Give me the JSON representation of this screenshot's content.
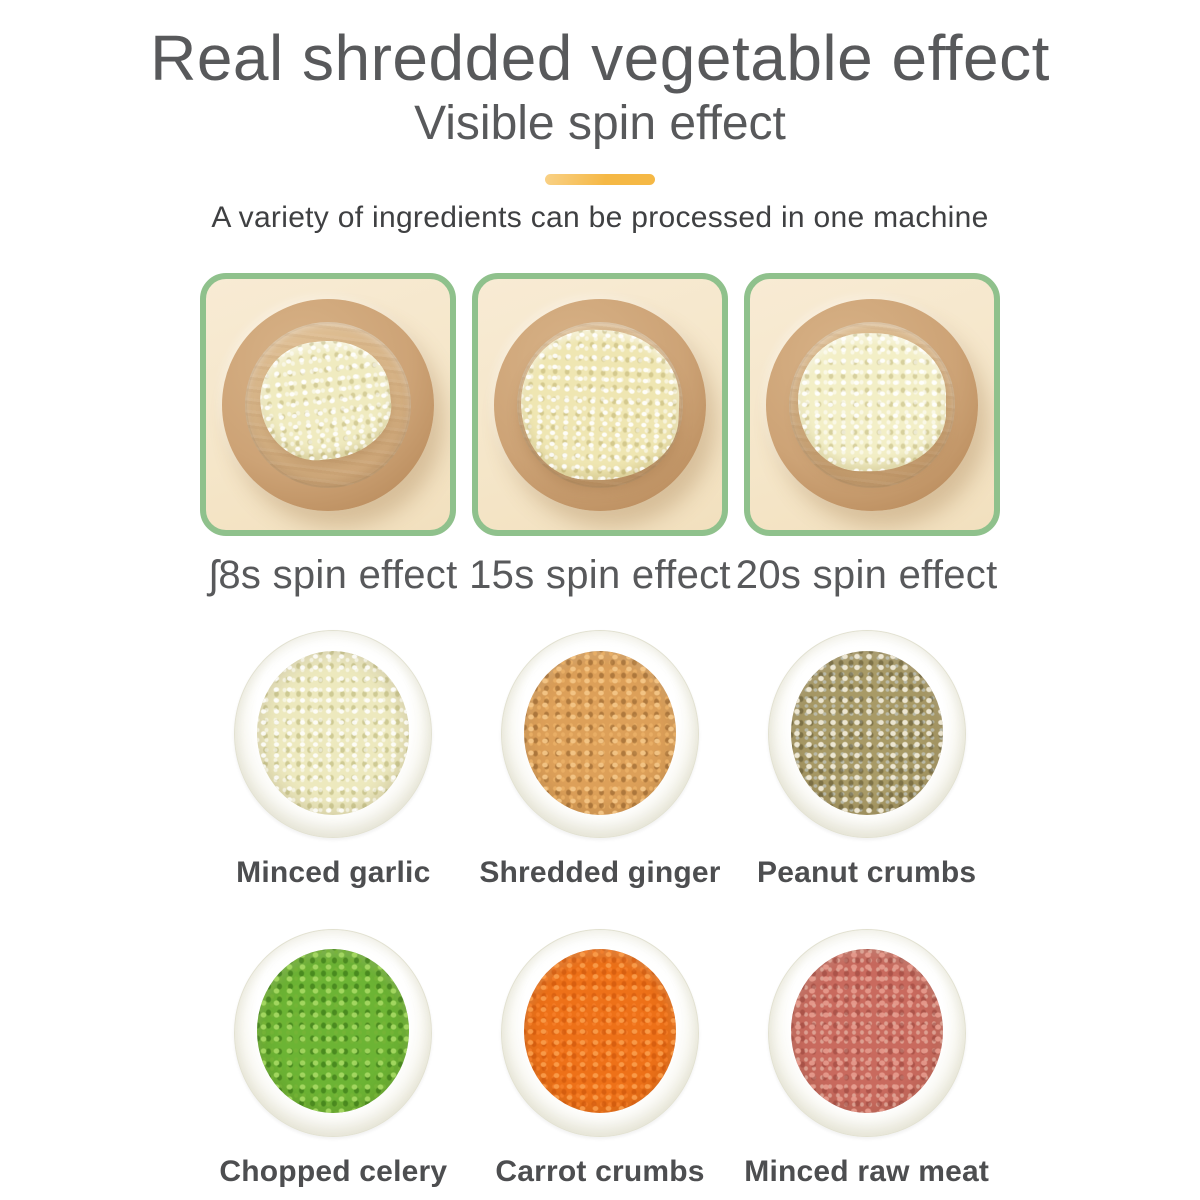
{
  "header": {
    "title": "Real shredded vegetable effect",
    "subtitle": "Visible spin effect",
    "tagline": "A variety of ingredients can be processed in one machine",
    "divider_color": "#F5B845"
  },
  "spin_demo": {
    "box_border_color": "#8FC18C",
    "box_background_color": "#F5E6C9",
    "stages": [
      {
        "label": "ʃ8s spin effect",
        "alt": "coarse minced garlic on wooden plate"
      },
      {
        "label": "15s spin effect",
        "alt": "medium minced garlic on wooden plate"
      },
      {
        "label": "20s spin effect",
        "alt": "fine minced garlic on wooden plate"
      }
    ]
  },
  "ingredients": {
    "rows": [
      [
        {
          "label": "Minced garlic",
          "color": "#EDE9BE"
        },
        {
          "label": "Shredded ginger",
          "color": "#DDA059"
        },
        {
          "label": "Peanut crumbs",
          "color": "#A89A66"
        }
      ],
      [
        {
          "label": "Chopped celery",
          "color": "#6CB434"
        },
        {
          "label": "Carrot crumbs",
          "color": "#EE7118"
        },
        {
          "label": "Minced raw meat",
          "color": "#C96A5E"
        }
      ]
    ]
  },
  "text_colors": {
    "heading": "#58595B",
    "body": "#3F4042",
    "label": "#4D4E50"
  }
}
